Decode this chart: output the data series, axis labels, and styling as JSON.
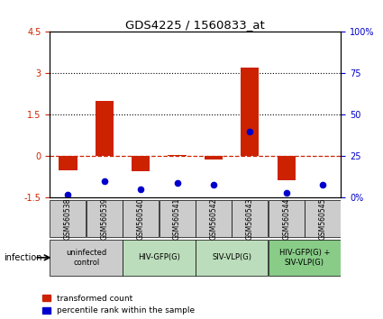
{
  "title": "GDS4225 / 1560833_at",
  "samples": [
    "GSM560538",
    "GSM560539",
    "GSM560540",
    "GSM560541",
    "GSM560542",
    "GSM560543",
    "GSM560544",
    "GSM560545"
  ],
  "transformed_counts": [
    -0.5,
    2.0,
    -0.55,
    0.05,
    -0.1,
    3.2,
    -0.85,
    0.0
  ],
  "percentile_ranks": [
    2,
    10,
    5,
    9,
    8,
    40,
    3,
    8
  ],
  "ylim_left": [
    -1.5,
    4.5
  ],
  "ylim_right": [
    0,
    100
  ],
  "yticks_left": [
    -1.5,
    0.0,
    1.5,
    3.0,
    4.5
  ],
  "yticks_right": [
    0,
    25,
    50,
    75,
    100
  ],
  "ytick_labels_left": [
    "-1.5",
    "0",
    "1.5",
    "3",
    "4.5"
  ],
  "ytick_labels_right": [
    "0%",
    "25",
    "50",
    "75",
    "100%"
  ],
  "hlines": [
    1.5,
    3.0
  ],
  "bar_color_red": "#cc2200",
  "bar_color_blue": "#0000cc",
  "zero_line_color": "#cc2200",
  "groups": [
    {
      "label": "uninfected\ncontrol",
      "start": 0,
      "end": 2,
      "color": "#cccccc"
    },
    {
      "label": "HIV-GFP(G)",
      "start": 2,
      "end": 4,
      "color": "#bbddbb"
    },
    {
      "label": "SIV-VLP(G)",
      "start": 4,
      "end": 6,
      "color": "#bbddbb"
    },
    {
      "label": "HIV-GFP(G) +\nSIV-VLP(G)",
      "start": 6,
      "end": 8,
      "color": "#88cc88"
    }
  ],
  "infection_label": "infection",
  "legend_red": "transformed count",
  "legend_blue": "percentile rank within the sample",
  "bar_width": 0.5
}
